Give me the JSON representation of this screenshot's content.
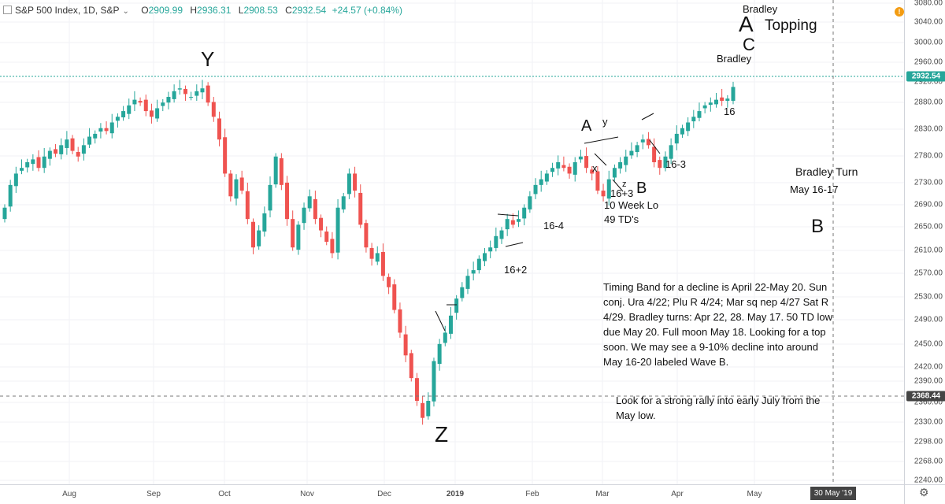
{
  "header": {
    "symbol": "S&P 500 Index, 1D, S&P",
    "open_label": "O",
    "open": "2909.99",
    "high_label": "H",
    "high": "2936.31",
    "low_label": "L",
    "low": "2908.53",
    "close_label": "C",
    "close": "2932.54",
    "change": "+24.57 (+0.84%)"
  },
  "price_axis": {
    "ticks": [
      "3080.00",
      "3040.00",
      "3000.00",
      "2960.00",
      "2920.00",
      "2880.00",
      "2830.00",
      "2780.00",
      "2730.00",
      "2690.00",
      "2650.00",
      "2610.00",
      "2570.00",
      "2530.00",
      "2490.00",
      "2450.00",
      "2420.00",
      "2390.00",
      "2360.00",
      "2330.00",
      "2298.00",
      "2268.00",
      "2240.00"
    ],
    "last_price": "2932.54",
    "crosshair_price": "2368.44"
  },
  "time_axis": {
    "ticks": [
      "Aug",
      "Sep",
      "Oct",
      "Nov",
      "Dec",
      "2019",
      "Feb",
      "Mar",
      "Apr",
      "May"
    ],
    "crosshair_date": "30 May '19"
  },
  "colors": {
    "up": "#26a69a",
    "down": "#ef5350",
    "last_line": "#26a69a"
  },
  "icons": {
    "alert": "alert-icon",
    "settings": "gear-icon",
    "symbol": "symbol-square-icon"
  },
  "chart_data": {
    "type": "candlestick",
    "title": "S&P 500 Index, 1D, S&P",
    "ohlc_last": {
      "open": 2909.99,
      "high": 2936.31,
      "low": 2908.53,
      "close": 2932.54,
      "change": 24.57,
      "change_pct": 0.84
    },
    "ylim": [
      2240,
      3080
    ],
    "x_ticks": [
      "Aug",
      "Sep",
      "Oct",
      "Nov",
      "Dec",
      "2019",
      "Feb",
      "Mar",
      "Apr",
      "May"
    ],
    "closes": [
      2720,
      2760,
      2780,
      2790,
      2800,
      2805,
      2790,
      2810,
      2820,
      2815,
      2830,
      2840,
      2820,
      2810,
      2830,
      2845,
      2850,
      2860,
      2855,
      2870,
      2880,
      2890,
      2900,
      2910,
      2905,
      2890,
      2880,
      2895,
      2905,
      2915,
      2925,
      2930,
      2920,
      2915,
      2925,
      2930,
      2905,
      2880,
      2840,
      2780,
      2740,
      2770,
      2750,
      2700,
      2650,
      2680,
      2710,
      2760,
      2810,
      2760,
      2700,
      2650,
      2690,
      2720,
      2740,
      2700,
      2680,
      2660,
      2640,
      2720,
      2740,
      2780,
      2750,
      2690,
      2650,
      2630,
      2640,
      2600,
      2580,
      2540,
      2500,
      2460,
      2420,
      2380,
      2350,
      2380,
      2450,
      2480,
      2500,
      2530,
      2560,
      2580,
      2600,
      2610,
      2630,
      2640,
      2650,
      2670,
      2680,
      2700,
      2690,
      2700,
      2720,
      2740,
      2760,
      2770,
      2780,
      2790,
      2800,
      2790,
      2780,
      2800,
      2810,
      2790,
      2780,
      2750,
      2740,
      2770,
      2790,
      2800,
      2810,
      2820,
      2830,
      2840,
      2830,
      2800,
      2790,
      2810,
      2830,
      2850,
      2860,
      2870,
      2880,
      2890,
      2900,
      2905,
      2910,
      2908,
      2912,
      2932.54
    ]
  },
  "annotations": {
    "wave_y": "Y",
    "wave_z": "Z",
    "wave_a_top": "A",
    "wave_c": "C",
    "topping": "Topping",
    "bradley_top": "Bradley",
    "bradley_mid": "Bradley",
    "wave_a": "A",
    "wave_a_y": "y",
    "wave_x": "x",
    "wave_z_small": "z",
    "wave_b": "B",
    "label_16_3plus": "16+3",
    "ten_week_lo": "10 Week Lo",
    "td_count": "49 TD's",
    "label_16_4": "16-4",
    "label_16_2plus": "16+2",
    "label_16_3": "16-3",
    "label_16": "16",
    "bradley_turn": "Bradley Turn",
    "bradley_dates": "May 16-17",
    "wave_b_future": "B",
    "timing_note": "Timing Band for a decline is April 22-May 20.  Sun conj. Ura 4/22; Plu R 4/24; Mar sq nep 4/27 Sat R 4/29. Bradley turns: Apr 22, 28.  May 17. 50 TD low due May 20. Full moon May 18. Looking for a top soon.  We may see a 9-10% decline into around May 16-20 labeled Wave B.",
    "rally_note": "Look for a strong rally into early July from the May low."
  }
}
